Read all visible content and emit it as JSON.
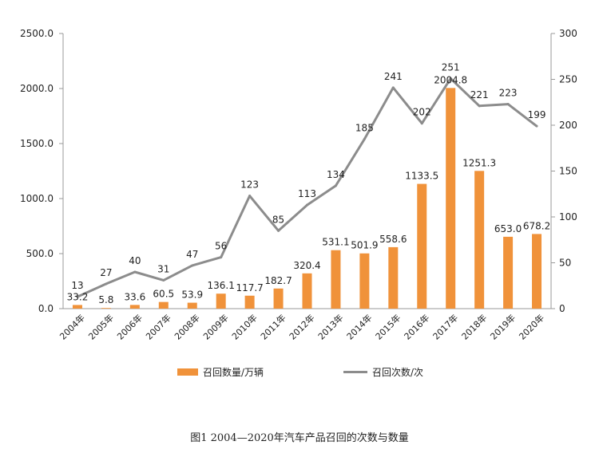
{
  "caption": "图1 2004—2020年汽车产品召回的次数与数量",
  "chart_data": {
    "type": "bar+line",
    "categories": [
      "2004年",
      "2005年",
      "2006年",
      "2007年",
      "2008年",
      "2009年",
      "2010年",
      "2011年",
      "2012年",
      "2013年",
      "2014年",
      "2015年",
      "2016年",
      "2017年",
      "2018年",
      "2019年",
      "2020年"
    ],
    "series": [
      {
        "name": "召回数量/万辆",
        "type": "bar",
        "axis": "left",
        "color": "#F0923A",
        "values": [
          33.2,
          5.8,
          33.6,
          60.5,
          53.9,
          136.1,
          117.7,
          182.7,
          320.4,
          531.1,
          501.9,
          558.6,
          1133.5,
          2004.8,
          1251.3,
          653.0,
          678.2
        ],
        "labels": [
          "33.2",
          "5.8",
          "33.6",
          "60.5",
          "53.9",
          "136.1",
          "117.7",
          "182.7",
          "320.4",
          "531.1",
          "501.9",
          "558.6",
          "1133.5",
          "2004.8",
          "1251.3",
          "653.0",
          "678.2"
        ]
      },
      {
        "name": "召回次数/次",
        "type": "line",
        "axis": "right",
        "color": "#8C8C8C",
        "values": [
          13,
          27,
          40,
          31,
          47,
          56,
          123,
          85,
          113,
          134,
          185,
          241,
          202,
          251,
          221,
          223,
          199
        ],
        "labels": [
          "13",
          "27",
          "40",
          "31",
          "47",
          "56",
          "123",
          "85",
          "113",
          "134",
          "185",
          "241",
          "202",
          "251",
          "221",
          "223",
          "199"
        ]
      }
    ],
    "y_left": {
      "ylim": [
        0,
        2500
      ],
      "ticks": [
        "0.0",
        "500.0",
        "1000.0",
        "1500.0",
        "2000.0",
        "2500.0"
      ]
    },
    "y_right": {
      "ylim": [
        0,
        300
      ],
      "ticks": [
        "0",
        "50",
        "100",
        "150",
        "200",
        "250",
        "300"
      ]
    },
    "legend_position": "bottom",
    "grid": false
  }
}
